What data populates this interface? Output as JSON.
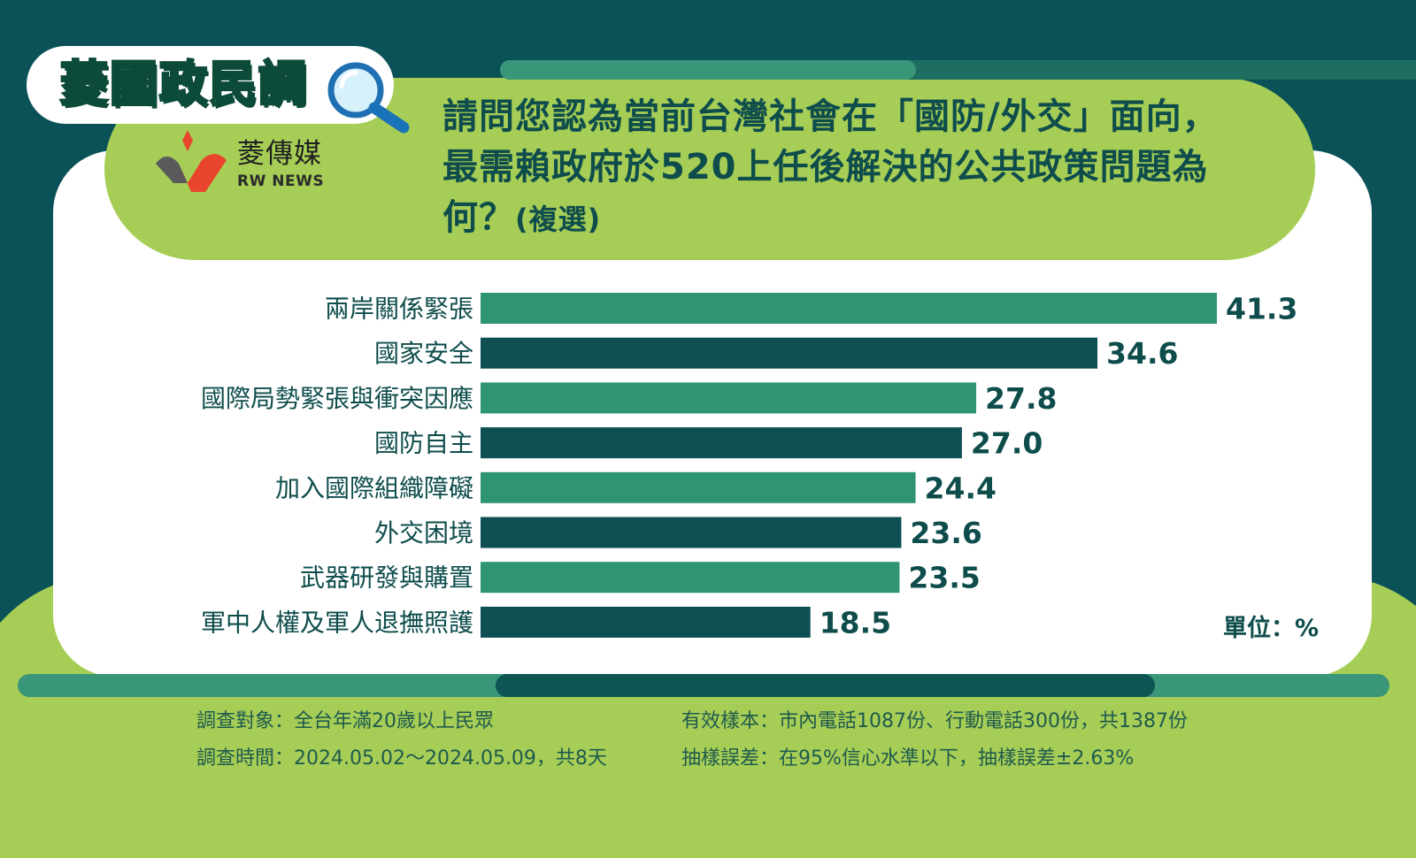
{
  "badge": {
    "title": "菱國政民調"
  },
  "logo": {
    "name_cn": "菱傳媒",
    "name_en": "RW NEWS"
  },
  "question": {
    "text": "請問您認為當前台灣社會在「國防/外交」面向，最需賴政府於520上任後解決的公共政策問題為何？",
    "suffix": "(複選)"
  },
  "unit_label": "單位：%",
  "colors": {
    "light_bar": "#2f9473",
    "dark_bar": "#0d4f53",
    "accent_green": "#a6cd55",
    "label_text": "#0e4d4c"
  },
  "chart_data": {
    "type": "bar",
    "orientation": "horizontal",
    "categories": [
      "兩岸關係緊張",
      "國家安全",
      "國際局勢緊張與衝突因應",
      "國防自主",
      "加入國際組織障礙",
      "外交困境",
      "武器研發與購置",
      "軍中人權及軍人退撫照護"
    ],
    "values": [
      41.3,
      34.6,
      27.8,
      27.0,
      24.4,
      23.6,
      23.5,
      18.5
    ],
    "value_labels": [
      "41.3",
      "34.6",
      "27.8",
      "27.0",
      "24.4",
      "23.6",
      "23.5",
      "18.5"
    ],
    "bar_colors": [
      "#2f9473",
      "#0d4f53",
      "#2f9473",
      "#0d4f53",
      "#2f9473",
      "#0d4f53",
      "#2f9473",
      "#0d4f53"
    ],
    "xlim": [
      0,
      41.3
    ],
    "grid": false,
    "legend": "none"
  },
  "footer": {
    "target": "調查對象：全台年滿20歲以上民眾",
    "period": "調查時間：2024.05.02～2024.05.09，共8天",
    "sample": "有效樣本：市內電話1087份、行動電話300份，共1387份",
    "error": "抽樣誤差：在95%信心水準以下，抽樣誤差±2.63%"
  }
}
